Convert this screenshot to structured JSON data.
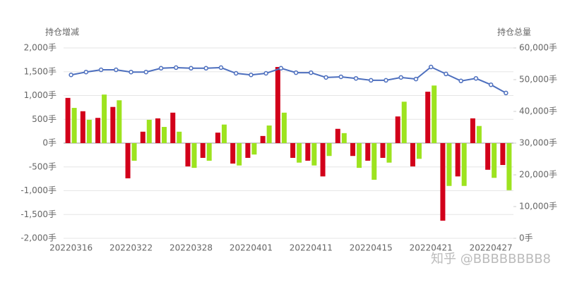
{
  "chart_data": {
    "type": "bar-line",
    "y_label": "持仓增减",
    "y2_label": "持仓总量",
    "categories": [
      "20220316",
      null,
      null,
      null,
      "20220322",
      null,
      null,
      null,
      "20220328",
      null,
      null,
      null,
      "20220401",
      null,
      null,
      null,
      "20220411",
      null,
      null,
      null,
      "20220415",
      null,
      null,
      null,
      "20220421",
      null,
      null,
      null,
      "20220427",
      null
    ],
    "series": [
      {
        "type": "bar",
        "color": "#d2001a",
        "values": [
          950,
          670,
          530,
          760,
          -740,
          240,
          520,
          640,
          -490,
          -310,
          220,
          -430,
          -310,
          150,
          1600,
          -310,
          -370,
          -700,
          300,
          -270,
          -370,
          -310,
          560,
          -490,
          1080,
          -1630,
          -700,
          520,
          -560,
          -460
        ]
      },
      {
        "type": "bar",
        "color": "#9de31f",
        "values": [
          740,
          490,
          1020,
          900,
          -370,
          490,
          340,
          240,
          -520,
          -370,
          390,
          -470,
          -240,
          370,
          640,
          -410,
          -470,
          -270,
          210,
          -520,
          -770,
          -410,
          870,
          -330,
          1210,
          -900,
          -900,
          360,
          -730,
          -990
        ]
      },
      {
        "type": "line",
        "axis": "y2",
        "color": "#4d6fbe",
        "values": [
          51500,
          52400,
          53100,
          53100,
          52400,
          52400,
          53600,
          53800,
          53600,
          53600,
          53800,
          52000,
          51500,
          52000,
          53600,
          52200,
          52200,
          50700,
          50900,
          50400,
          49800,
          49800,
          50700,
          50200,
          54000,
          51800,
          49600,
          50400,
          48400,
          45800
        ]
      }
    ],
    "ylim": [
      -2000,
      2000
    ],
    "yticks": [
      {
        "value": -2000,
        "label": "-2,000手"
      },
      {
        "value": -1500,
        "label": "-1,500手"
      },
      {
        "value": -1000,
        "label": "-1,000手"
      },
      {
        "value": -500,
        "label": "-500手"
      },
      {
        "value": 0,
        "label": "0手"
      },
      {
        "value": 500,
        "label": "500手"
      },
      {
        "value": 1000,
        "label": "1,000手"
      },
      {
        "value": 1500,
        "label": "1,500手"
      },
      {
        "value": 2000,
        "label": "2,000手"
      }
    ],
    "y2lim": [
      0,
      60000
    ],
    "y2ticks": [
      {
        "value": 0,
        "label": "0手"
      },
      {
        "value": 10000,
        "label": "10,000手"
      },
      {
        "value": 20000,
        "label": "20,000手"
      },
      {
        "value": 30000,
        "label": "30,000手"
      },
      {
        "value": 40000,
        "label": "40,000手"
      },
      {
        "value": 50000,
        "label": "50,000手"
      },
      {
        "value": 60000,
        "label": "60,000手"
      }
    ],
    "grid": true,
    "watermark": "知乎 @BBBBBBBB8"
  }
}
